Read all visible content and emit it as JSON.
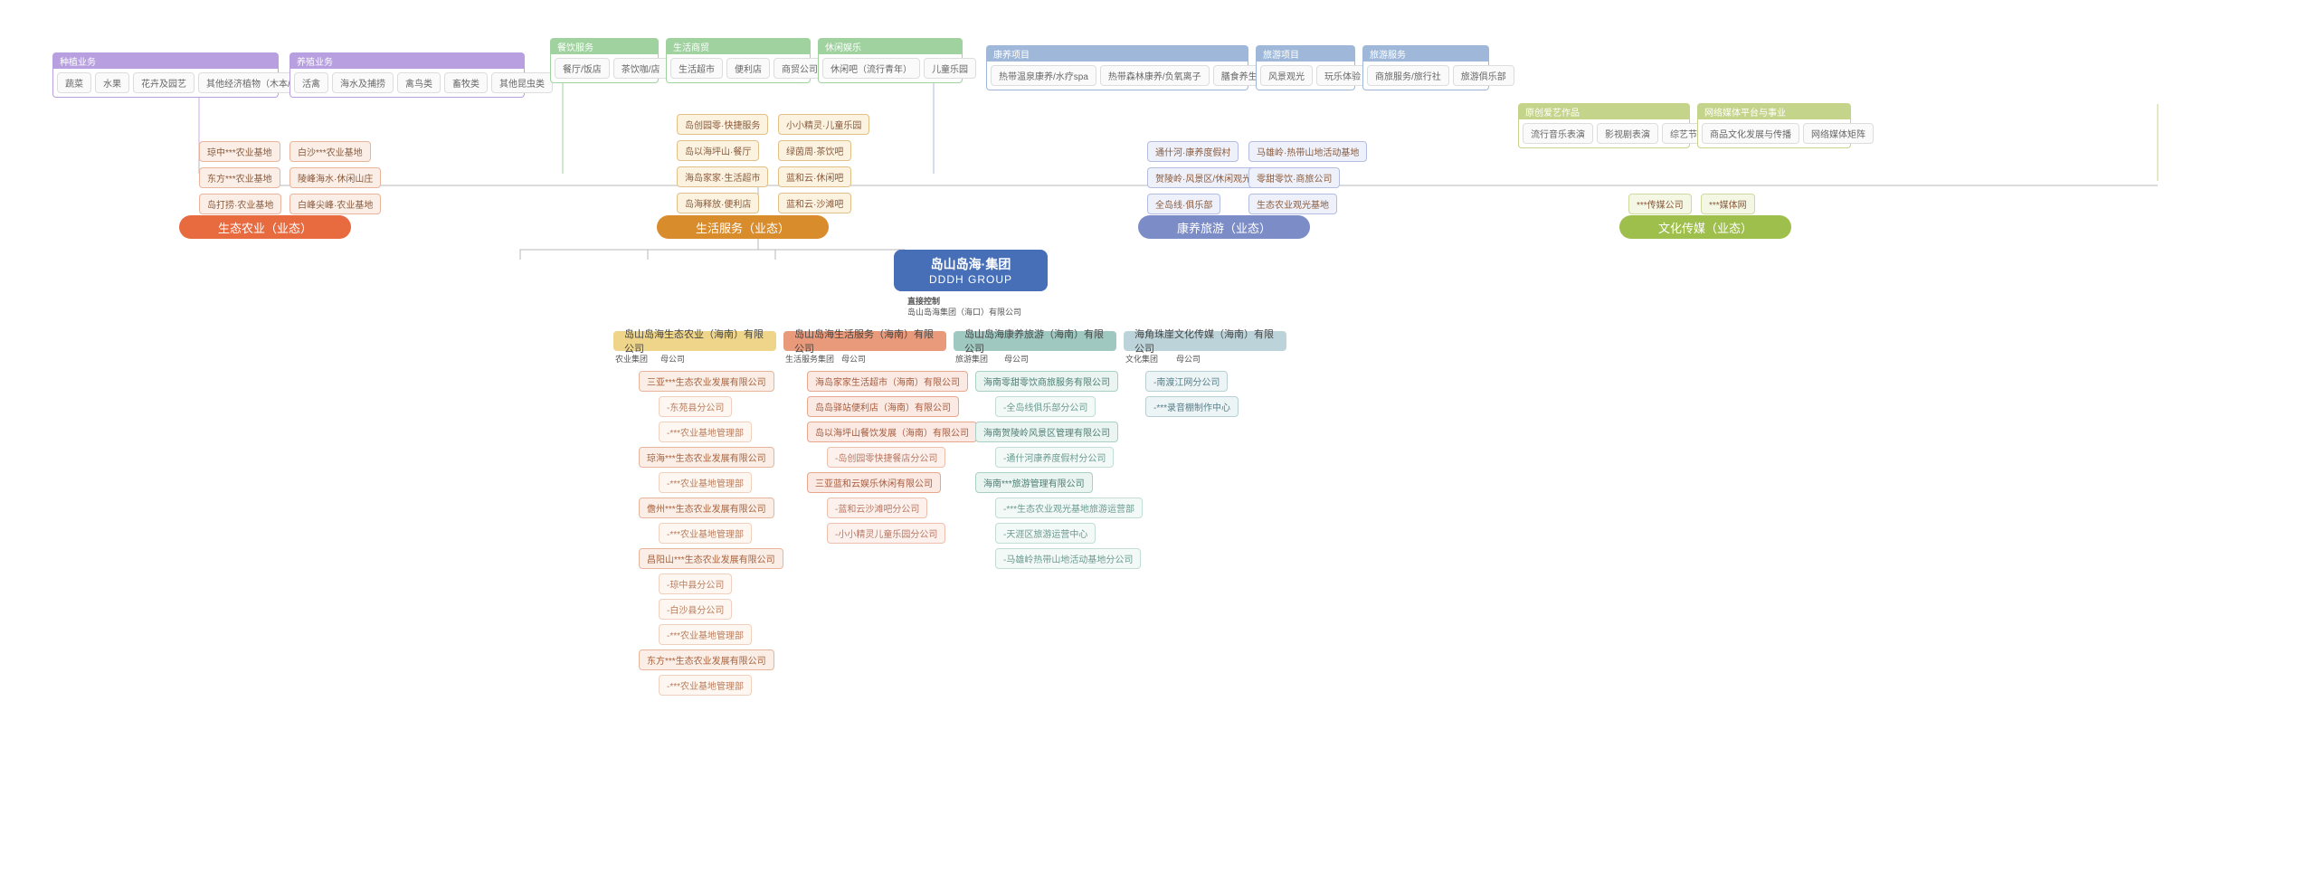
{
  "colors": {
    "agri": "#e86a3f",
    "agri_soft": "#f6c8b6",
    "life": "#d98c2b",
    "life_soft": "#f2d6a6",
    "health": "#7c8cc7",
    "health_soft": "#c9d0ea",
    "culture": "#9fbf4d",
    "culture_soft": "#d7e6b1",
    "purple": "#b79fe0",
    "purple_soft": "#e3d6f4",
    "green": "#9fd29f",
    "green_soft": "#d4ecd4",
    "blue": "#9fb8d9",
    "blue_soft": "#d4e0ef",
    "olive": "#c4d48a",
    "olive_soft": "#e8eec9",
    "hq": "#476fb8",
    "sub_agri": "#efd58a",
    "sub_life": "#e89a7a",
    "sub_health": "#9fc9c0",
    "sub_culture": "#bcd4d9"
  },
  "sectors": {
    "agri": "生态农业（业态）",
    "life": "生活服务（业态）",
    "health": "康养旅游（业态）",
    "culture": "文化传媒（业态）"
  },
  "hq": {
    "cn": "岛山岛海·集团",
    "en": "DDDH GROUP",
    "ctrl": "直接控制",
    "holding": "岛山岛海集团（海口）有限公司"
  },
  "top": {
    "planting": {
      "title": "种植业务",
      "items": [
        "蔬菜",
        "水果",
        "花卉及园艺",
        "其他经济植物（木本/草本）"
      ]
    },
    "breeding": {
      "title": "养殖业务",
      "items": [
        "活禽",
        "海水及捕捞",
        "禽鸟类",
        "畜牧类",
        "其他昆虫类"
      ]
    },
    "catering": {
      "title": "餐饮服务",
      "items": [
        "餐厅/饭店",
        "茶饮咖/店"
      ]
    },
    "retail": {
      "title": "生活商贸",
      "items": [
        "生活超市",
        "便利店",
        "商贸公司"
      ]
    },
    "leisure": {
      "title": "休闲娱乐",
      "items": [
        "休闲吧（流行青年）",
        "儿童乐园"
      ]
    },
    "wellness": {
      "title": "康养项目",
      "items": [
        "热带温泉康养/水疗spa",
        "热带森林康养/负氧离子",
        "膳食养生与医养旅居"
      ]
    },
    "tour": {
      "title": "旅游项目",
      "items": [
        "风景观光",
        "玩乐体验"
      ]
    },
    "travel": {
      "title": "旅游服务",
      "items": [
        "商旅服务/旅行社",
        "旅游俱乐部"
      ]
    },
    "media1": {
      "title": "原创爱艺作品",
      "items": [
        "流行音乐表演",
        "影视剧表演",
        "综艺节目"
      ]
    },
    "media2": {
      "title": "网络媒体平台与事业",
      "items": [
        "商品文化发展与传播",
        "网络媒体矩阵"
      ]
    }
  },
  "agriPairs": [
    [
      "琼中***农业基地",
      "白沙***农业基地"
    ],
    [
      "东方***农业基地",
      "陵峰海水·休闲山庄"
    ],
    [
      "岛打捞·农业基地",
      "白峰尖峰·农业基地"
    ]
  ],
  "lifePairs": [
    [
      "岛创园零·快捷服务",
      "小小精灵·儿童乐园"
    ],
    [
      "岛以海坪山·餐厅",
      "绿茵周·茶饮吧"
    ],
    [
      "海岛家家·生活超市",
      "蓝和云·休闲吧"
    ],
    [
      "岛海释放·便利店",
      "蓝和云·沙滩吧"
    ]
  ],
  "healthPairs": [
    [
      "通什河·康养度假村",
      "马雄岭·热带山地活动基地"
    ],
    [
      "贺陵岭·风景区/休闲观光区",
      "零甜零饮·商旅公司"
    ],
    [
      "全岛线·俱乐部",
      "生态农业观光基地"
    ]
  ],
  "culturePairs": [
    [
      "***传媒公司",
      "***媒体网"
    ]
  ],
  "subs": {
    "agri": {
      "name": "岛山岛海生态农业（海南）有限公司",
      "meta": [
        "农业集团",
        "母公司"
      ]
    },
    "life": {
      "name": "岛山岛海生活服务（海南）有限公司",
      "meta": [
        "生活服务集团",
        "母公司"
      ]
    },
    "health": {
      "name": "岛山岛海康养旅游（海南）有限公司",
      "meta": [
        "旅游集团",
        "母公司"
      ]
    },
    "culture": {
      "name": "海角珠崖文化传媒（海南）有限公司",
      "meta": [
        "文化集团",
        "母公司"
      ]
    }
  },
  "agriTree": [
    {
      "t": "三亚***生态农业发展有限公司",
      "c": [
        "-东苑县分公司",
        "-***农业基地管理部"
      ]
    },
    {
      "t": "琼海***生态农业发展有限公司",
      "c": [
        "-***农业基地管理部"
      ]
    },
    {
      "t": "儋州***生态农业发展有限公司",
      "c": [
        "-***农业基地管理部"
      ]
    },
    {
      "t": "昌阳山***生态农业发展有限公司",
      "c": [
        "-琼中县分公司",
        "-白沙县分公司",
        "-***农业基地管理部"
      ]
    },
    {
      "t": "东方***生态农业发展有限公司",
      "c": [
        "-***农业基地管理部"
      ]
    }
  ],
  "lifeTree": [
    {
      "t": "海岛家家生活超市（海南）有限公司",
      "c": []
    },
    {
      "t": "岛岛驿站便利店（海南）有限公司",
      "c": []
    },
    {
      "t": "岛以海坪山餐饮发展（海南）有限公司",
      "c": [
        "-岛创园零快捷餐店分公司"
      ]
    },
    {
      "t": "三亚蓝和云娱乐休闲有限公司",
      "c": [
        "-蓝和云沙滩吧分公司",
        "-小小精灵儿童乐园分公司"
      ]
    }
  ],
  "healthTree": [
    {
      "t": "海南零甜零饮商旅服务有限公司",
      "c": [
        "-全岛线俱乐部分公司"
      ]
    },
    {
      "t": "海南贺陵岭风景区管理有限公司",
      "c": [
        "-通什河康养度假村分公司"
      ]
    },
    {
      "t": "海南***旅游管理有限公司",
      "c": [
        "-***生态农业观光基地旅游运营部",
        "-天涯区旅游运营中心",
        "-马雄岭热带山地活动基地分公司"
      ]
    }
  ],
  "cultureTree": [
    {
      "t": "-南渡江网分公司",
      "c": []
    },
    {
      "t": "-***录音棚制作中心",
      "c": []
    }
  ]
}
